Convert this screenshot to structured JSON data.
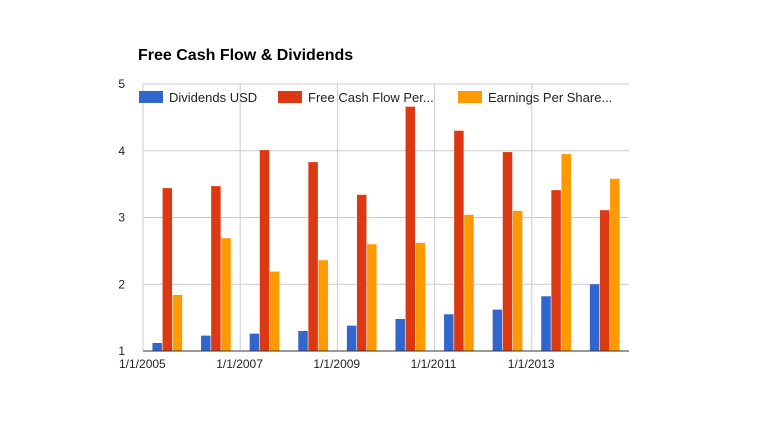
{
  "chart_data": {
    "type": "bar",
    "title": "Free Cash Flow & Dividends",
    "xlabel": "",
    "ylabel": "",
    "ylim": [
      1,
      5
    ],
    "yticks": [
      1,
      2,
      3,
      4,
      5
    ],
    "grid": true,
    "legend_position": "top",
    "categories": [
      "2005",
      "2006",
      "2007",
      "2008",
      "2009",
      "2010",
      "2011",
      "2012",
      "2013",
      "2014"
    ],
    "x_tick_labels": [
      {
        "category": "2005",
        "label": "1/1/2005"
      },
      {
        "category": "2007",
        "label": "1/1/2007"
      },
      {
        "category": "2009",
        "label": "1/1/2009"
      },
      {
        "category": "2011",
        "label": "1/1/2011"
      },
      {
        "category": "2013",
        "label": "1/1/2013"
      }
    ],
    "series": [
      {
        "name": "Dividends USD",
        "legend_label": "Dividends USD",
        "color": "#3366cc",
        "values": [
          1.12,
          1.23,
          1.26,
          1.3,
          1.38,
          1.48,
          1.55,
          1.62,
          1.82,
          2.0
        ]
      },
      {
        "name": "Free Cash Flow Per Share",
        "legend_label": "Free Cash Flow Per...",
        "color": "#dc3912",
        "values": [
          3.44,
          3.47,
          4.01,
          3.83,
          3.34,
          4.66,
          4.3,
          3.98,
          3.41,
          3.11
        ]
      },
      {
        "name": "Earnings Per Share",
        "legend_label": "Earnings Per Share...",
        "color": "#ff9900",
        "values": [
          1.84,
          2.69,
          2.19,
          2.36,
          2.6,
          2.62,
          3.04,
          3.1,
          3.95,
          3.58
        ]
      }
    ]
  }
}
